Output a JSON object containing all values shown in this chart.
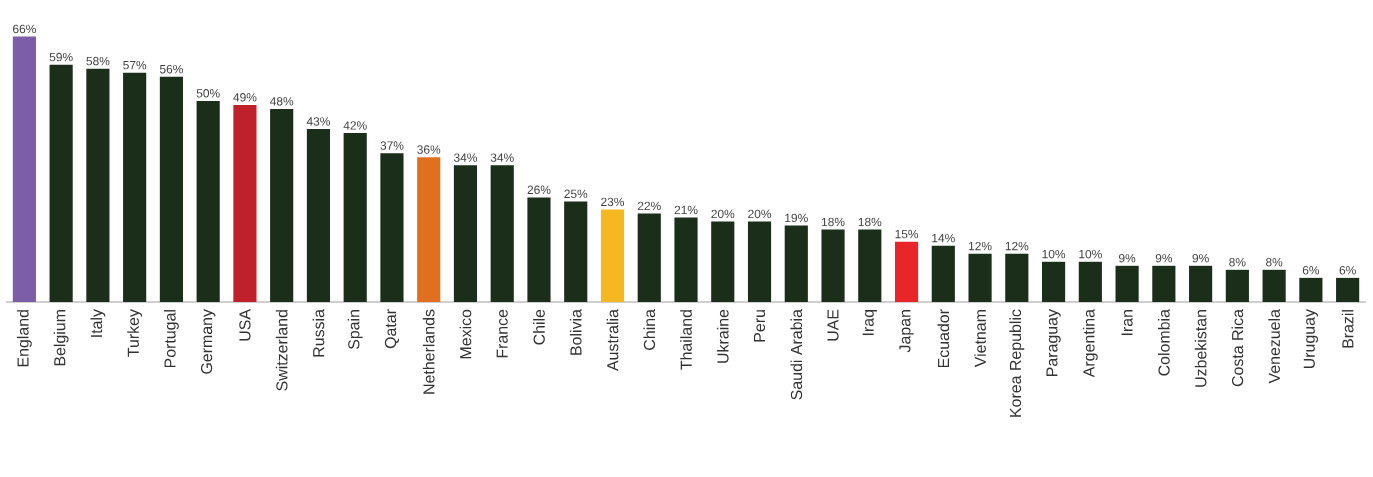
{
  "chart_data": {
    "type": "bar",
    "categories": [
      "England",
      "Belgium",
      "Italy",
      "Turkey",
      "Portugal",
      "Germany",
      "USA",
      "Switzerland",
      "Russia",
      "Spain",
      "Qatar",
      "Netherlands",
      "Mexico",
      "France",
      "Chile",
      "Bolivia",
      "Australia",
      "China",
      "Thailand",
      "Ukraine",
      "Peru",
      "Saudi Arabia",
      "UAE",
      "Iraq",
      "Japan",
      "Ecuador",
      "Vietnam",
      "Korea Republic",
      "Paraguay",
      "Argentina",
      "Iran",
      "Colombia",
      "Uzbekistan",
      "Costa Rica",
      "Venezuela",
      "Uruguay",
      "Brazil"
    ],
    "values": [
      66,
      59,
      58,
      57,
      56,
      50,
      49,
      48,
      43,
      42,
      37,
      36,
      34,
      34,
      26,
      25,
      23,
      22,
      21,
      20,
      20,
      19,
      18,
      18,
      15,
      14,
      12,
      12,
      10,
      10,
      9,
      9,
      9,
      8,
      8,
      6,
      6
    ],
    "value_labels": [
      "66%",
      "59%",
      "58%",
      "57%",
      "56%",
      "50%",
      "49%",
      "48%",
      "43%",
      "42%",
      "37%",
      "36%",
      "34%",
      "34%",
      "26%",
      "25%",
      "23%",
      "22%",
      "21%",
      "20%",
      "20%",
      "19%",
      "18%",
      "18%",
      "15%",
      "14%",
      "12%",
      "12%",
      "10%",
      "10%",
      "9%",
      "9%",
      "9%",
      "8%",
      "8%",
      "6%",
      "6%"
    ],
    "colors": [
      "#7b5ea7",
      "#1a2e1a",
      "#1a2e1a",
      "#1a2e1a",
      "#1a2e1a",
      "#1a2e1a",
      "#c0202a",
      "#1a2e1a",
      "#1a2e1a",
      "#1a2e1a",
      "#1a2e1a",
      "#e07020",
      "#1a2e1a",
      "#1a2e1a",
      "#1a2e1a",
      "#1a2e1a",
      "#f5b820",
      "#1a2e1a",
      "#1a2e1a",
      "#1a2e1a",
      "#1a2e1a",
      "#1a2e1a",
      "#1a2e1a",
      "#1a2e1a",
      "#e8262a",
      "#1a2e1a",
      "#1a2e1a",
      "#1a2e1a",
      "#1a2e1a",
      "#1a2e1a",
      "#1a2e1a",
      "#1a2e1a",
      "#1a2e1a",
      "#1a2e1a",
      "#1a2e1a",
      "#1a2e1a",
      "#1a2e1a"
    ]
  }
}
